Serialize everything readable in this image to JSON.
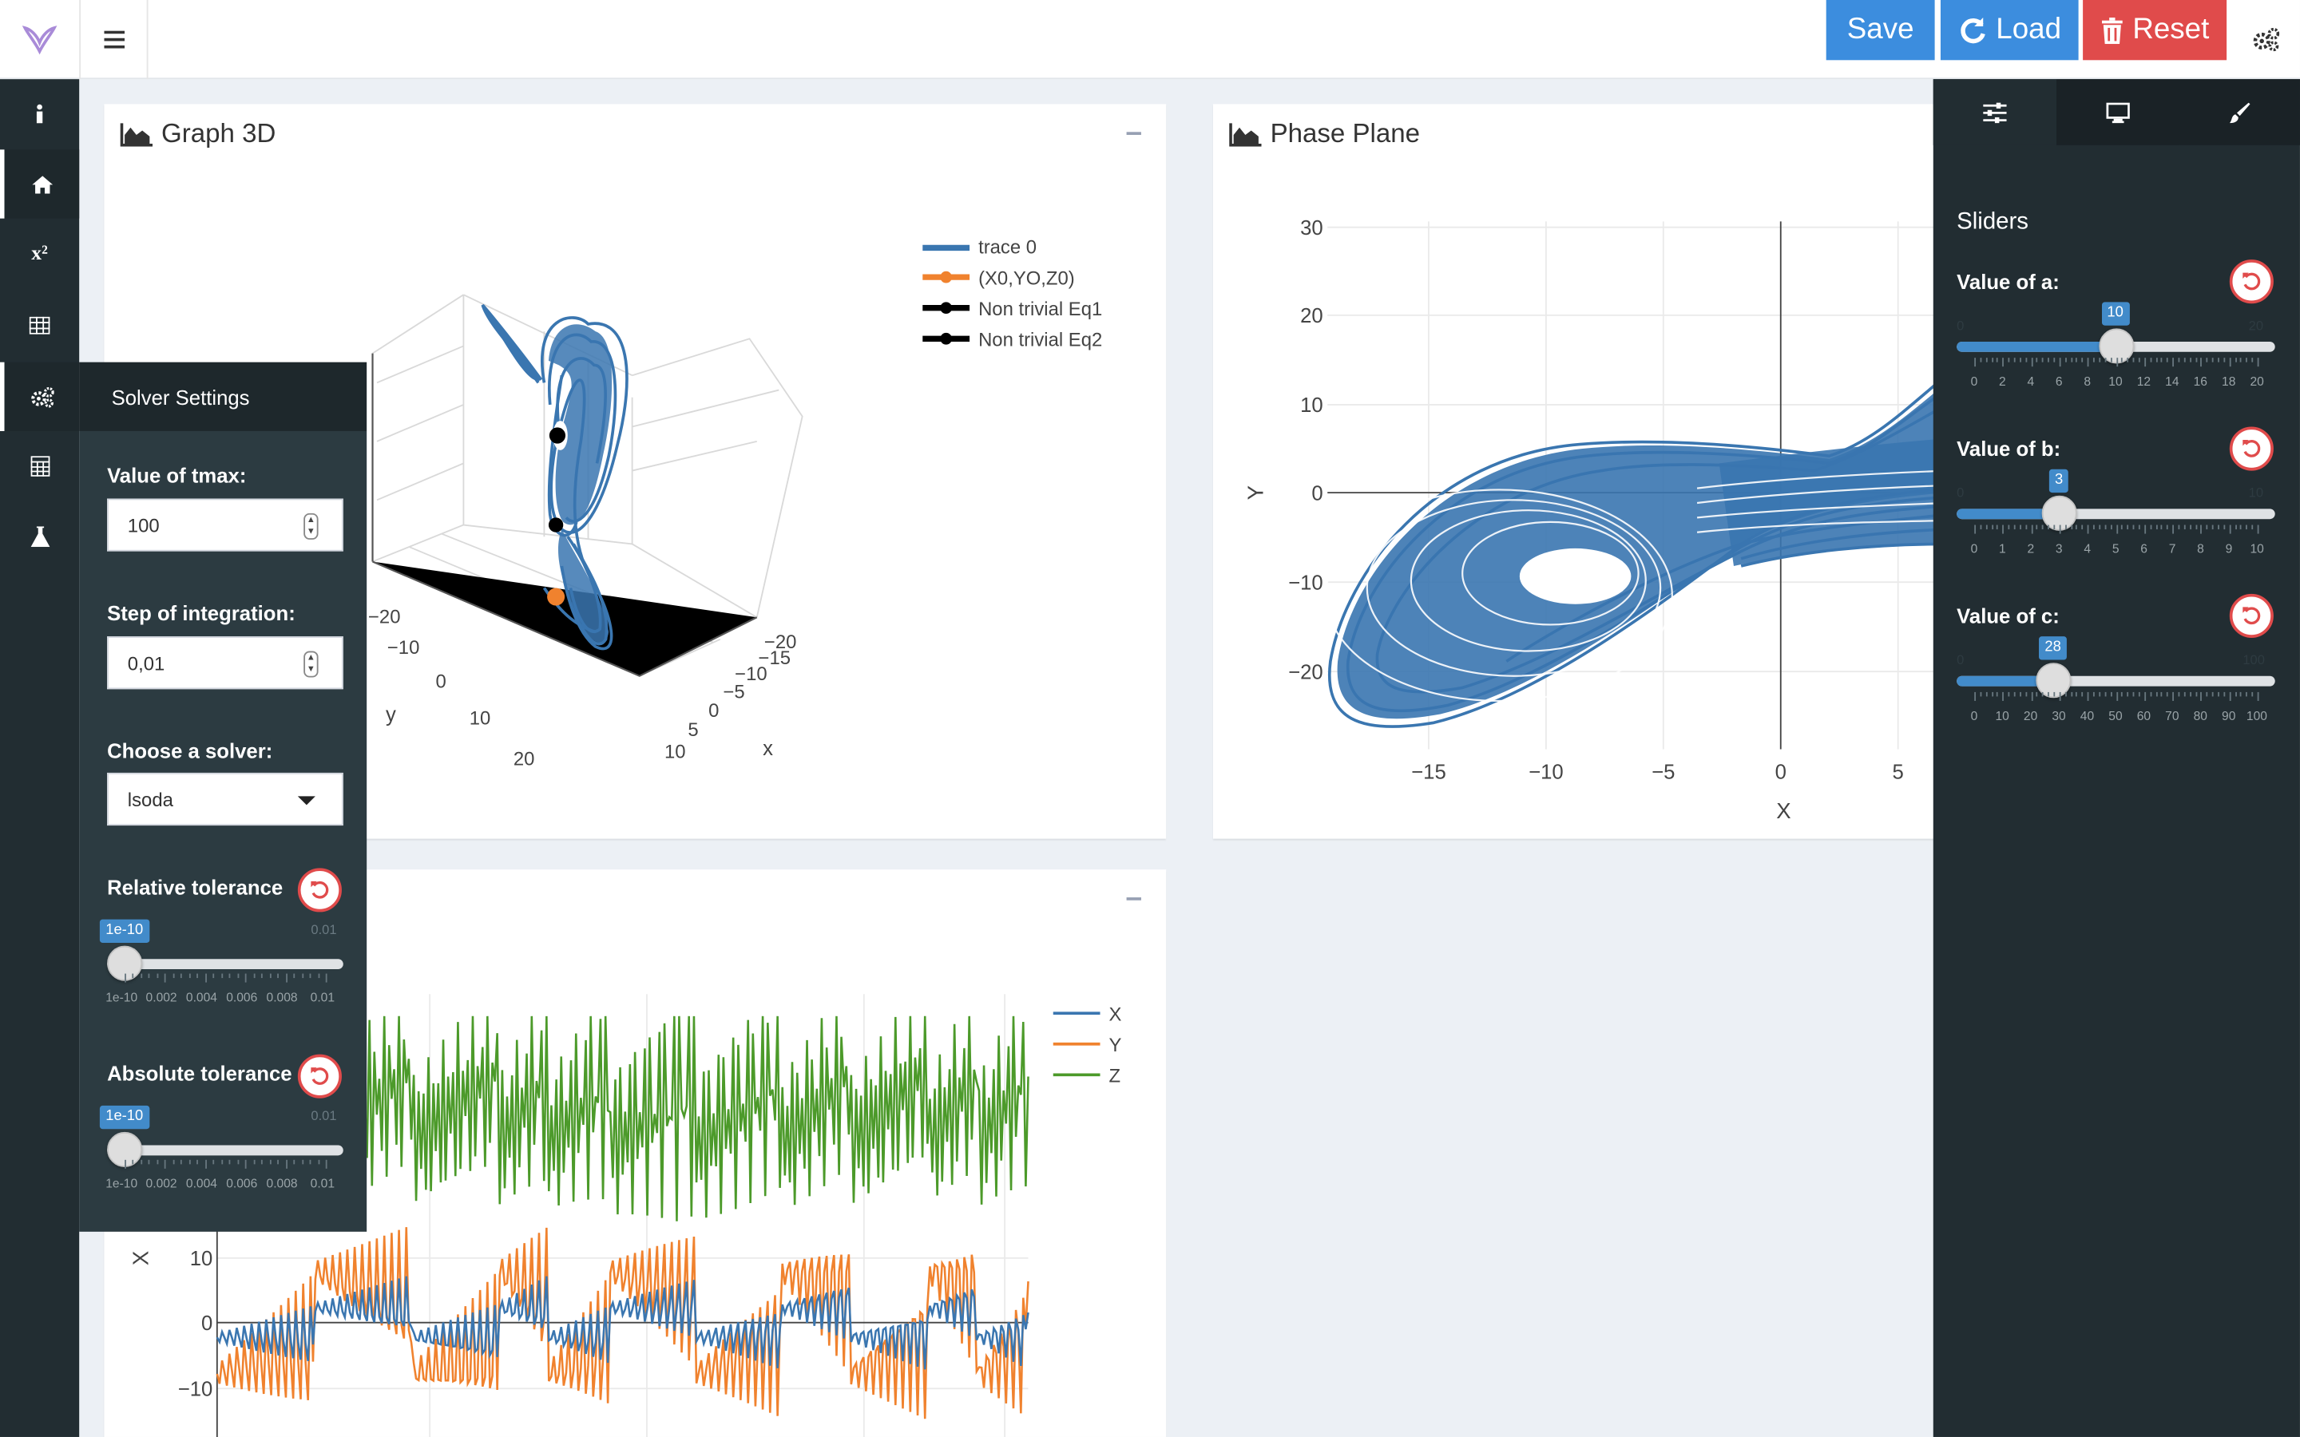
{
  "header": {
    "save_label": "Save",
    "load_label": "Load",
    "reset_label": "Reset",
    "colors": {
      "primary": "#3c8dde",
      "danger": "#e04b4b"
    }
  },
  "sidebar": {
    "items": [
      {
        "icon": "info-icon"
      },
      {
        "icon": "home-icon"
      },
      {
        "icon": "superscript-icon",
        "label": "x²"
      },
      {
        "icon": "table-icon"
      },
      {
        "icon": "gears-icon"
      },
      {
        "icon": "calculator-icon"
      },
      {
        "icon": "flask-icon"
      }
    ]
  },
  "solver": {
    "title": "Solver Settings",
    "tmax_label": "Value of tmax:",
    "tmax_value": "100",
    "step_label": "Step of integration:",
    "step_value": "0,01",
    "solver_label": "Choose a solver:",
    "solver_value": "lsoda",
    "reltol": {
      "label": "Relative tolerance",
      "value_badge": "1e-10",
      "min": "1e-10",
      "max": "0.01",
      "ticks": [
        "1e-10",
        "0.002",
        "0.004",
        "0.006",
        "0.008",
        "0.01"
      ]
    },
    "abstol": {
      "label": "Absolute tolerance",
      "value_badge": "1e-10",
      "min": "1e-10",
      "max": "0.01",
      "ticks": [
        "1e-10",
        "0.002",
        "0.004",
        "0.006",
        "0.008",
        "0.01"
      ]
    }
  },
  "graph3d": {
    "title": "Graph 3D",
    "legend": [
      "trace 0",
      "(X0,YO,Z0)",
      "Non trivial Eq1",
      "Non trivial Eq2"
    ],
    "axis_labels": {
      "x": "x",
      "y": "y"
    },
    "y_ticks": [
      "−20",
      "−10",
      "0",
      "10",
      "20"
    ],
    "x_ticks": [
      "−20",
      "−15",
      "−10",
      "−5",
      "0",
      "5",
      "10"
    ]
  },
  "phase": {
    "title": "Phase Plane",
    "xlabel": "X",
    "ylabel": "Y",
    "y_ticks": [
      "30",
      "20",
      "10",
      "0",
      "−10",
      "−20"
    ],
    "x_ticks": [
      "−15",
      "−10",
      "−5",
      "0",
      "5"
    ]
  },
  "timeseries": {
    "legend": [
      "X",
      "Y",
      "Z"
    ],
    "ylabel": "X",
    "y_ticks": [
      "10",
      "0",
      "−10"
    ]
  },
  "right_panel": {
    "tabs": [
      "sliders-icon",
      "desktop-icon",
      "paintbrush-icon"
    ],
    "heading": "Sliders",
    "sliders": [
      {
        "label": "Value of a:",
        "value": "10",
        "min": "0",
        "max": "20",
        "fraction": 0.5,
        "ticks": [
          "0",
          "2",
          "4",
          "6",
          "8",
          "10",
          "12",
          "14",
          "16",
          "18",
          "20"
        ]
      },
      {
        "label": "Value of b:",
        "value": "3",
        "min": "0",
        "max": "10",
        "fraction": 0.3,
        "ticks": [
          "0",
          "1",
          "2",
          "3",
          "4",
          "5",
          "6",
          "7",
          "8",
          "9",
          "10"
        ]
      },
      {
        "label": "Value of c:",
        "value": "28",
        "min": "0",
        "max": "100",
        "fraction": 0.28,
        "ticks": [
          "0",
          "10",
          "20",
          "30",
          "40",
          "50",
          "60",
          "70",
          "80",
          "90",
          "100"
        ]
      }
    ]
  },
  "colors": {
    "series_x": "#3a76b0",
    "series_y": "#f0822e",
    "series_z": "#4c9a2a",
    "sidebar_bg": "#222d32"
  }
}
